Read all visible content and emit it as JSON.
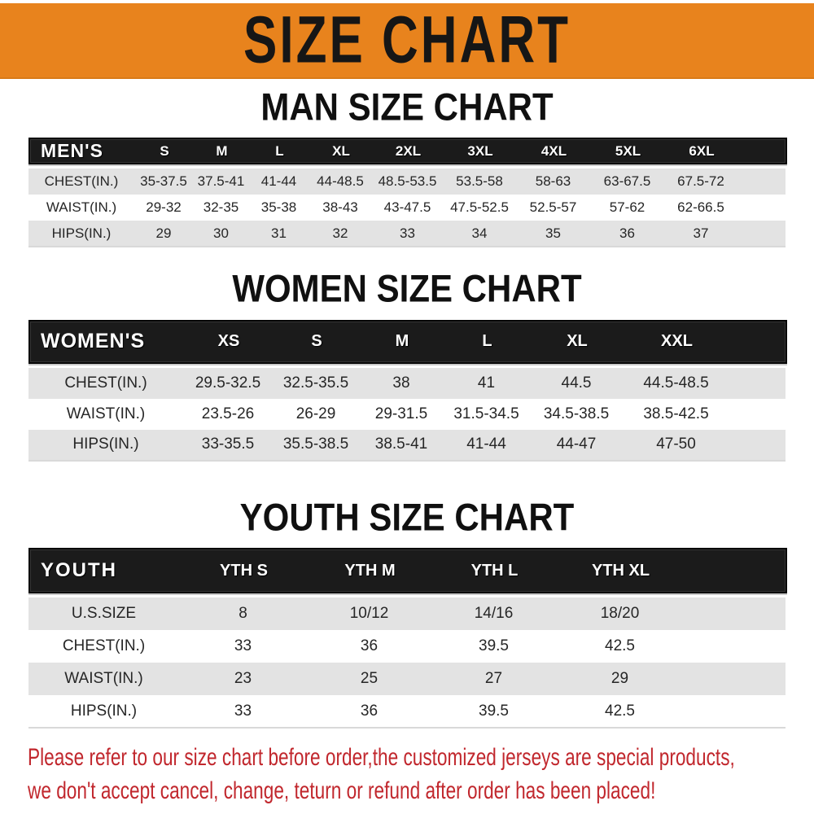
{
  "banner": {
    "title": "SIZE CHART"
  },
  "colors": {
    "banner_bg": "#E8831D",
    "banner_text": "#161616",
    "table_header_bg": "#1B1B1B",
    "table_header_text": "#FFFFFF",
    "row_alt_bg": "#E3E3E3",
    "row_text": "#262626",
    "footer_text": "#C1272D"
  },
  "chart_data": [
    {
      "type": "table",
      "title": "MAN SIZE CHART",
      "corner_label": "MEN'S",
      "columns": [
        "S",
        "M",
        "L",
        "XL",
        "2XL",
        "3XL",
        "4XL",
        "5XL",
        "6XL"
      ],
      "rows": [
        {
          "label": "CHEST(IN.)",
          "values": [
            "35-37.5",
            "37.5-41",
            "41-44",
            "44-48.5",
            "48.5-53.5",
            "53.5-58",
            "58-63",
            "63-67.5",
            "67.5-72"
          ]
        },
        {
          "label": "WAIST(IN.)",
          "values": [
            "29-32",
            "32-35",
            "35-38",
            "38-43",
            "43-47.5",
            "47.5-52.5",
            "52.5-57",
            "57-62",
            "62-66.5"
          ]
        },
        {
          "label": "HIPS(IN.)",
          "values": [
            "29",
            "30",
            "31",
            "32",
            "33",
            "34",
            "35",
            "36",
            "37"
          ]
        }
      ]
    },
    {
      "type": "table",
      "title": "WOMEN SIZE CHART",
      "corner_label": "WOMEN'S",
      "columns": [
        "XS",
        "S",
        "M",
        "L",
        "XL",
        "XXL"
      ],
      "rows": [
        {
          "label": "CHEST(IN.)",
          "values": [
            "29.5-32.5",
            "32.5-35.5",
            "38",
            "41",
            "44.5",
            "44.5-48.5"
          ]
        },
        {
          "label": "WAIST(IN.)",
          "values": [
            "23.5-26",
            "26-29",
            "29-31.5",
            "31.5-34.5",
            "34.5-38.5",
            "38.5-42.5"
          ]
        },
        {
          "label": "HIPS(IN.)",
          "values": [
            "33-35.5",
            "35.5-38.5",
            "38.5-41",
            "41-44",
            "44-47",
            "47-50"
          ]
        }
      ]
    },
    {
      "type": "table",
      "title": "YOUTH SIZE CHART",
      "corner_label": "YOUTH",
      "columns": [
        "YTH S",
        "YTH M",
        "YTH L",
        "YTH XL"
      ],
      "rows": [
        {
          "label": "U.S.SIZE",
          "values": [
            "8",
            "10/12",
            "14/16",
            "18/20"
          ]
        },
        {
          "label": "CHEST(IN.)",
          "values": [
            "33",
            "36",
            "39.5",
            "42.5"
          ]
        },
        {
          "label": "WAIST(IN.)",
          "values": [
            "23",
            "25",
            "27",
            "29"
          ]
        },
        {
          "label": "HIPS(IN.)",
          "values": [
            "33",
            "36",
            "39.5",
            "42.5"
          ]
        }
      ]
    }
  ],
  "footer": {
    "line1": "Please refer to our size chart before order,the customized jerseys are special products,",
    "line2": "we don't accept cancel, change, teturn or refund after order has been placed!"
  }
}
